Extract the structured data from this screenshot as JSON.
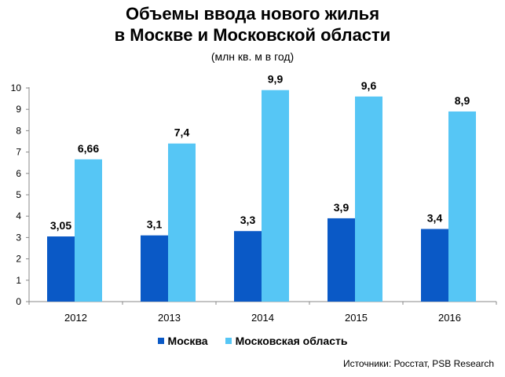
{
  "chart_data": {
    "type": "bar",
    "title_line1": "Объемы ввода нового жилья",
    "title_line2": "в Москве и Московской области",
    "subtitle": "(млн кв. м в год)",
    "categories": [
      "2012",
      "2013",
      "2014",
      "2015",
      "2016"
    ],
    "series": [
      {
        "name": "Москва",
        "values": [
          3.05,
          3.1,
          3.3,
          3.9,
          3.4
        ],
        "labels": [
          "3,05",
          "3,1",
          "3,3",
          "3,9",
          "3,4"
        ],
        "color": "#0a59c6"
      },
      {
        "name": "Московская область",
        "values": [
          6.66,
          7.4,
          9.9,
          9.6,
          8.9
        ],
        "labels": [
          "6,66",
          "7,4",
          "9,9",
          "9,6",
          "8,9"
        ],
        "color": "#56c6f5"
      }
    ],
    "ylim": [
      0,
      10
    ],
    "yticks": [
      0,
      1,
      2,
      3,
      4,
      5,
      6,
      7,
      8,
      9,
      10
    ],
    "grid": false,
    "legend_position": "bottom"
  },
  "source": "Источники: Росстат, PSB Research"
}
